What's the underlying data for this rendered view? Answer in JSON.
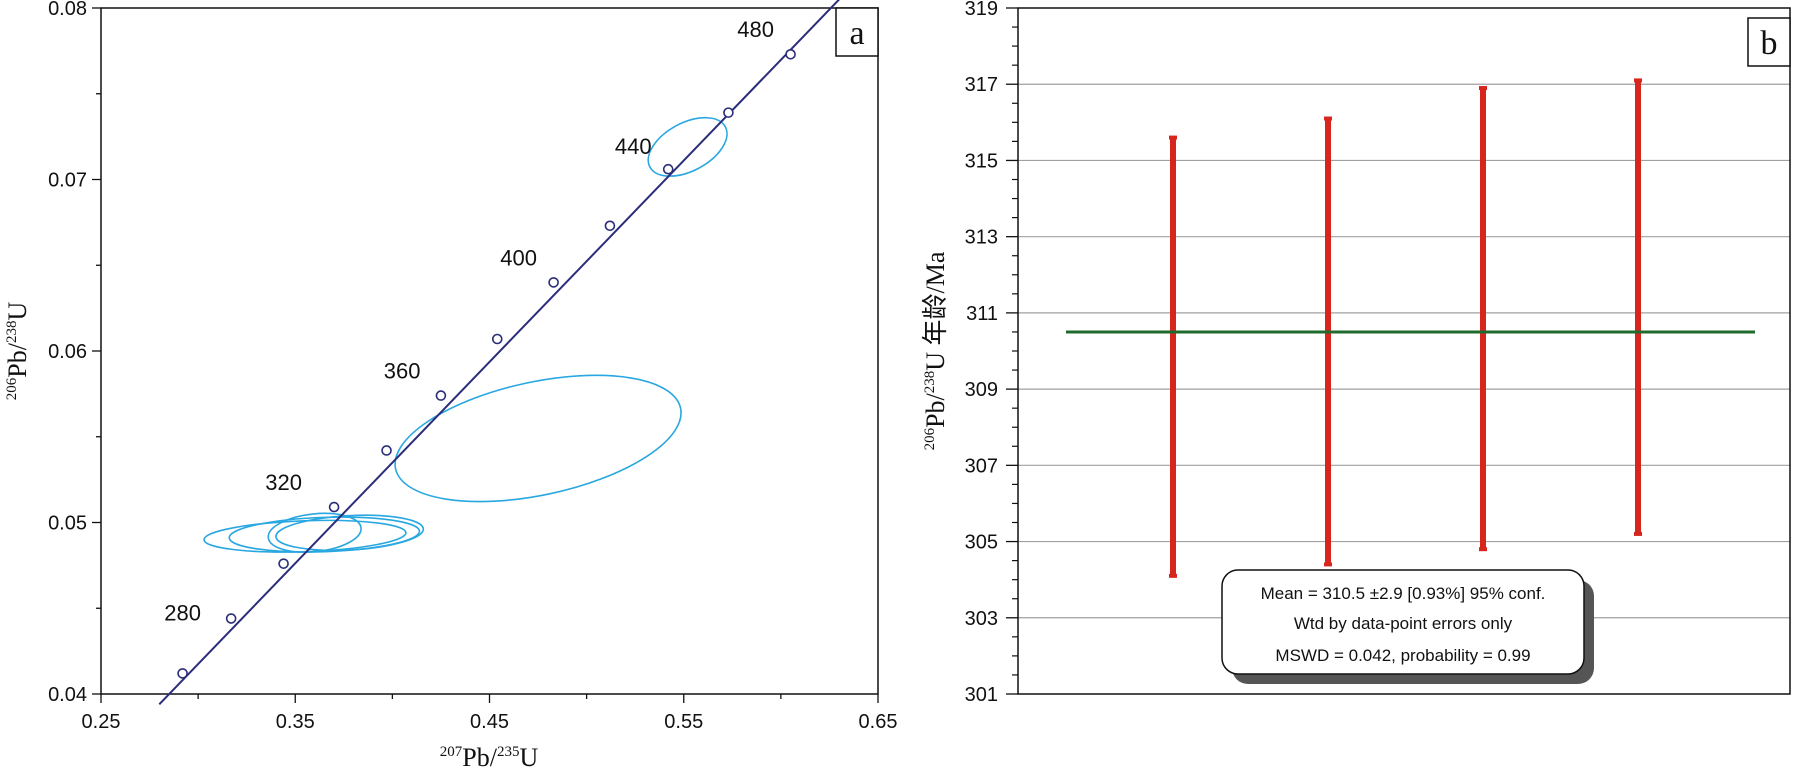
{
  "chart_data": [
    {
      "panel_label": "a",
      "type": "scatter",
      "xlabel": {
        "sup1": "207",
        "base1": "Pb/",
        "sup2": "235",
        "base2": "U"
      },
      "ylabel": {
        "sup1": "206",
        "base1": "Pb/",
        "sup2": "238",
        "base2": "U"
      },
      "xlim": [
        0.25,
        0.65
      ],
      "ylim": [
        0.04,
        0.08
      ],
      "x_ticks": [
        "0.25",
        "0.35",
        "0.45",
        "0.55",
        "0.65"
      ],
      "y_ticks": [
        "0.04",
        "0.05",
        "0.06",
        "0.07",
        "0.08"
      ],
      "concordia": {
        "line": {
          "x": [
            0.28,
            0.63
          ],
          "y": [
            0.0394,
            0.0805
          ]
        },
        "markers": [
          {
            "x": 0.292,
            "y": 0.0412
          },
          {
            "x": 0.317,
            "y": 0.0444
          },
          {
            "x": 0.344,
            "y": 0.0476
          },
          {
            "x": 0.37,
            "y": 0.0509
          },
          {
            "x": 0.397,
            "y": 0.0542
          },
          {
            "x": 0.425,
            "y": 0.0574
          },
          {
            "x": 0.454,
            "y": 0.0607
          },
          {
            "x": 0.483,
            "y": 0.064
          },
          {
            "x": 0.512,
            "y": 0.0673
          },
          {
            "x": 0.542,
            "y": 0.0706
          },
          {
            "x": 0.573,
            "y": 0.0739
          },
          {
            "x": 0.605,
            "y": 0.0773
          }
        ],
        "age_labels": [
          {
            "text": "280",
            "x": 0.292,
            "y": 0.0443
          },
          {
            "text": "320",
            "x": 0.344,
            "y": 0.0519
          },
          {
            "text": "360",
            "x": 0.405,
            "y": 0.0584
          },
          {
            "text": "400",
            "x": 0.465,
            "y": 0.065
          },
          {
            "text": "440",
            "x": 0.524,
            "y": 0.0715
          },
          {
            "text": "480",
            "x": 0.587,
            "y": 0.0783
          }
        ]
      },
      "ellipses": [
        {
          "cx": 0.355,
          "cy": 0.0492,
          "rx": 0.052,
          "ry": 0.0009,
          "angle": 2
        },
        {
          "cx": 0.365,
          "cy": 0.0493,
          "rx": 0.049,
          "ry": 0.001,
          "angle": 2
        },
        {
          "cx": 0.378,
          "cy": 0.0494,
          "rx": 0.038,
          "ry": 0.001,
          "angle": 3
        },
        {
          "cx": 0.36,
          "cy": 0.0494,
          "rx": 0.024,
          "ry": 0.0011,
          "angle": 6
        },
        {
          "cx": 0.475,
          "cy": 0.0549,
          "rx": 0.075,
          "ry": 0.0033,
          "angle": 12
        },
        {
          "cx": 0.552,
          "cy": 0.0719,
          "rx": 0.022,
          "ry": 0.0014,
          "angle": 28
        }
      ],
      "colors": {
        "concordia": "#2b2d7a",
        "ellipse": "#29a7e0"
      }
    },
    {
      "panel_label": "b",
      "type": "bar",
      "ylabel": {
        "sup1": "206",
        "base1": "Pb/",
        "sup2": "238",
        "base2": "U 年龄/Ma"
      },
      "ylim": [
        301,
        319
      ],
      "y_ticks": [
        "301",
        "303",
        "305",
        "307",
        "309",
        "311",
        "313",
        "315",
        "317",
        "319"
      ],
      "error_bars": [
        {
          "low": 304.1,
          "high": 315.6
        },
        {
          "low": 304.4,
          "high": 316.1
        },
        {
          "low": 304.8,
          "high": 316.9
        },
        {
          "low": 305.2,
          "high": 317.1
        }
      ],
      "mean": 310.5,
      "stats": {
        "line1": "Mean = 310.5 ±2.9  [0.93%]  95% conf.",
        "line2": "Wtd by data-point errors only",
        "line3": "MSWD = 0.042, probability = 0.99"
      },
      "grid": true,
      "colors": {
        "bar": "#d7261e",
        "mean": "#1f6b2e",
        "grid": "#a0a0a0"
      }
    }
  ]
}
